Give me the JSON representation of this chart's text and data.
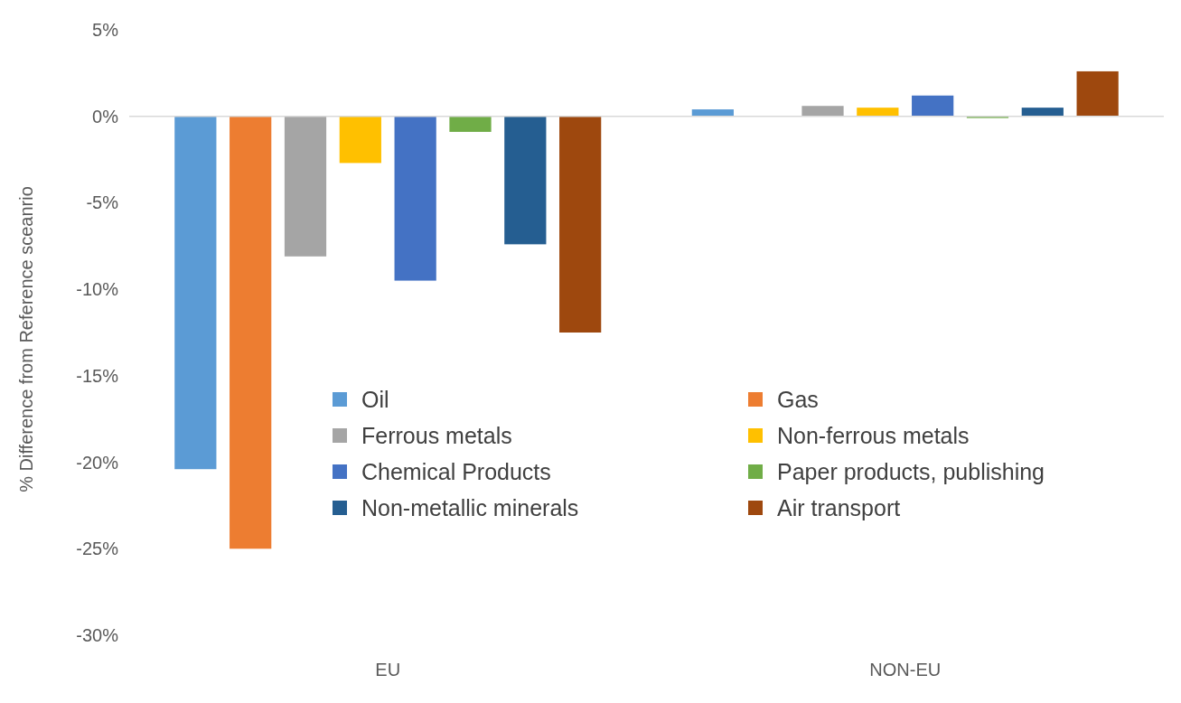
{
  "chart_data": {
    "type": "bar",
    "ylabel": "% Difference from Reference sceanrio",
    "categories": [
      "EU",
      "NON-EU"
    ],
    "series": [
      {
        "name": "Oil",
        "color": "#5b9bd5",
        "values": [
          -20.4,
          0.4
        ]
      },
      {
        "name": "Gas",
        "color": "#ed7d31",
        "values": [
          -25.0,
          0
        ]
      },
      {
        "name": "Ferrous metals",
        "color": "#a5a5a5",
        "values": [
          -8.1,
          0.6
        ]
      },
      {
        "name": "Non-ferrous metals",
        "color": "#ffc000",
        "values": [
          -2.7,
          0.5
        ]
      },
      {
        "name": "Chemical Products",
        "color": "#4472c4",
        "values": [
          -9.5,
          1.2
        ]
      },
      {
        "name": "Paper products, publishing",
        "color": "#70ad47",
        "values": [
          -0.9,
          -0.1
        ]
      },
      {
        "name": "Non-metallic minerals",
        "color": "#255e91",
        "values": [
          -7.4,
          0.5
        ]
      },
      {
        "name": "Air transport",
        "color": "#9e480e",
        "values": [
          -12.5,
          2.6
        ]
      }
    ],
    "ylim": [
      -30,
      5
    ],
    "yticks": [
      {
        "value": -30,
        "label": "-30%"
      },
      {
        "value": -25,
        "label": "-25%"
      },
      {
        "value": -20,
        "label": "-20%"
      },
      {
        "value": -15,
        "label": "-15%"
      },
      {
        "value": -10,
        "label": "-10%"
      },
      {
        "value": -5,
        "label": "-5%"
      },
      {
        "value": 0,
        "label": "0%"
      },
      {
        "value": 5,
        "label": "5%"
      }
    ],
    "legend": "bottom"
  }
}
